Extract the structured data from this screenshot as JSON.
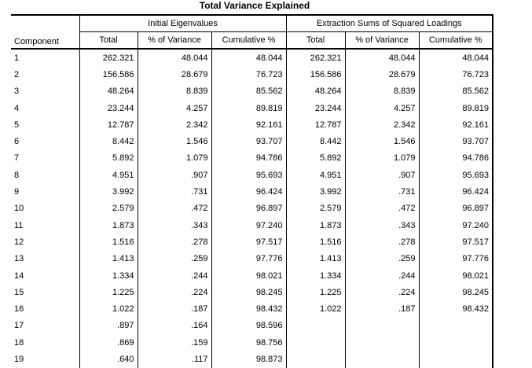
{
  "title": "Total Variance Explained",
  "headers": {
    "component": "Component",
    "initial_eigenvalues": "Initial Eigenvalues",
    "extraction_sums": "Extraction Sums of Squared Loadings",
    "total": "Total",
    "pct_variance": "% of Variance",
    "cumulative_pct": "Cumulative %"
  },
  "rows": [
    {
      "component": "1",
      "init_total": "262.321",
      "init_pct": "48.044",
      "init_cum": "48.044",
      "ext_total": "262.321",
      "ext_pct": "48.044",
      "ext_cum": "48.044"
    },
    {
      "component": "2",
      "init_total": "156.586",
      "init_pct": "28.679",
      "init_cum": "76.723",
      "ext_total": "156.586",
      "ext_pct": "28.679",
      "ext_cum": "76.723"
    },
    {
      "component": "3",
      "init_total": "48.264",
      "init_pct": "8.839",
      "init_cum": "85.562",
      "ext_total": "48.264",
      "ext_pct": "8.839",
      "ext_cum": "85.562"
    },
    {
      "component": "4",
      "init_total": "23.244",
      "init_pct": "4.257",
      "init_cum": "89.819",
      "ext_total": "23.244",
      "ext_pct": "4.257",
      "ext_cum": "89.819"
    },
    {
      "component": "5",
      "init_total": "12.787",
      "init_pct": "2.342",
      "init_cum": "92.161",
      "ext_total": "12.787",
      "ext_pct": "2.342",
      "ext_cum": "92.161"
    },
    {
      "component": "6",
      "init_total": "8.442",
      "init_pct": "1.546",
      "init_cum": "93.707",
      "ext_total": "8.442",
      "ext_pct": "1.546",
      "ext_cum": "93.707"
    },
    {
      "component": "7",
      "init_total": "5.892",
      "init_pct": "1.079",
      "init_cum": "94.786",
      "ext_total": "5.892",
      "ext_pct": "1.079",
      "ext_cum": "94.786"
    },
    {
      "component": "8",
      "init_total": "4.951",
      "init_pct": ".907",
      "init_cum": "95.693",
      "ext_total": "4.951",
      "ext_pct": ".907",
      "ext_cum": "95.693"
    },
    {
      "component": "9",
      "init_total": "3.992",
      "init_pct": ".731",
      "init_cum": "96.424",
      "ext_total": "3.992",
      "ext_pct": ".731",
      "ext_cum": "96.424"
    },
    {
      "component": "10",
      "init_total": "2.579",
      "init_pct": ".472",
      "init_cum": "96.897",
      "ext_total": "2.579",
      "ext_pct": ".472",
      "ext_cum": "96.897"
    },
    {
      "component": "11",
      "init_total": "1.873",
      "init_pct": ".343",
      "init_cum": "97.240",
      "ext_total": "1.873",
      "ext_pct": ".343",
      "ext_cum": "97.240"
    },
    {
      "component": "12",
      "init_total": "1.516",
      "init_pct": ".278",
      "init_cum": "97.517",
      "ext_total": "1.516",
      "ext_pct": ".278",
      "ext_cum": "97.517"
    },
    {
      "component": "13",
      "init_total": "1.413",
      "init_pct": ".259",
      "init_cum": "97.776",
      "ext_total": "1.413",
      "ext_pct": ".259",
      "ext_cum": "97.776"
    },
    {
      "component": "14",
      "init_total": "1.334",
      "init_pct": ".244",
      "init_cum": "98.021",
      "ext_total": "1.334",
      "ext_pct": ".244",
      "ext_cum": "98.021"
    },
    {
      "component": "15",
      "init_total": "1.225",
      "init_pct": ".224",
      "init_cum": "98.245",
      "ext_total": "1.225",
      "ext_pct": ".224",
      "ext_cum": "98.245"
    },
    {
      "component": "16",
      "init_total": "1.022",
      "init_pct": ".187",
      "init_cum": "98.432",
      "ext_total": "1.022",
      "ext_pct": ".187",
      "ext_cum": "98.432"
    },
    {
      "component": "17",
      "init_total": ".897",
      "init_pct": ".164",
      "init_cum": "98.596",
      "ext_total": "",
      "ext_pct": "",
      "ext_cum": ""
    },
    {
      "component": "18",
      "init_total": ".869",
      "init_pct": ".159",
      "init_cum": "98.756",
      "ext_total": "",
      "ext_pct": "",
      "ext_cum": ""
    },
    {
      "component": "19",
      "init_total": ".640",
      "init_pct": ".117",
      "init_cum": "98.873",
      "ext_total": "",
      "ext_pct": "",
      "ext_cum": ""
    }
  ]
}
